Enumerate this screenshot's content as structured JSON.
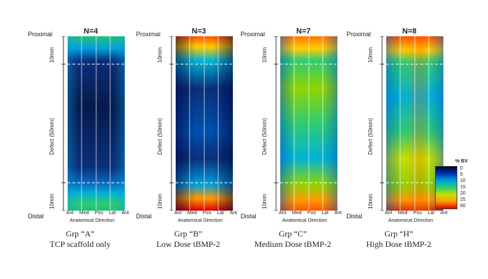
{
  "panels": [
    {
      "n": "N=4",
      "caption1": "Grp “A”",
      "caption2": "TCP scaffold only",
      "type": "A"
    },
    {
      "n": "N=3",
      "caption1": "Grp “B”",
      "caption2": "Low Dose tBMP-2",
      "type": "B"
    },
    {
      "n": "N=7",
      "caption1": "Grp “C”",
      "caption2": "Medium Dose tBMP-2",
      "type": "C"
    },
    {
      "n": "N=8",
      "caption1": "Grp “H”",
      "caption2": "High Dose tBMP-2",
      "type": "H"
    }
  ],
  "axis": {
    "proximal": "Proximal",
    "distal": "Distal",
    "top_segment": "10mm",
    "mid_segment": "Defect (50mm)",
    "bottom_segment": "10mm",
    "ticks": [
      "Ant",
      "Med",
      "Pos",
      "Lat",
      "Ant"
    ],
    "title": "Anatomical Direction"
  },
  "legend": {
    "title": "% BV",
    "labels": [
      "0",
      "5",
      "10",
      "15",
      "20",
      "25",
      "60"
    ],
    "colors": [
      "#000033",
      "#0033aa",
      "#00a0dc",
      "#2ecc71",
      "#c8e000",
      "#ff9900",
      "#dd0000"
    ]
  }
}
